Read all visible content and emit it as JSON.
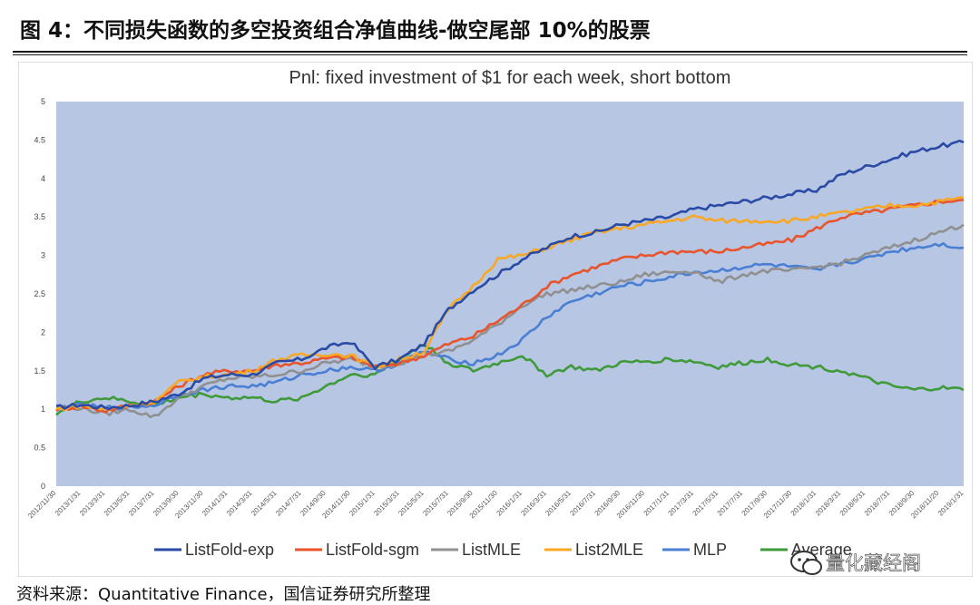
{
  "figure": {
    "title": "图 4：不同损失函数的多空投资组合净值曲线-做空尾部 10%的股票",
    "source": "资料来源：Quantitative Finance，国信证券研究所整理",
    "watermark": "量化藏经阁"
  },
  "chart_data": {
    "type": "line",
    "title": "Pnl: fixed investment of $1 for each week, short bottom",
    "xlabel": "",
    "ylabel": "",
    "ylim": [
      0,
      5
    ],
    "yticks": [
      "0",
      "0.5",
      "1",
      "1.5",
      "2",
      "2.5",
      "3",
      "3.5",
      "4",
      "4.5",
      "5"
    ],
    "grid": false,
    "legend": "bottom",
    "xticks": [
      "2012/11/30",
      "2013/1/31",
      "2013/3/31",
      "2013/5/31",
      "2013/7/31",
      "2013/9/30",
      "2013/11/30",
      "2014/1/31",
      "2014/3/31",
      "2014/5/31",
      "2014/7/31",
      "2014/9/30",
      "2014/11/30",
      "2015/1/31",
      "2015/3/31",
      "2015/5/31",
      "2015/7/31",
      "2015/9/30",
      "2015/11/30",
      "2016/1/31",
      "2016/3/31",
      "2016/5/31",
      "2016/7/31",
      "2016/9/30",
      "2016/11/30",
      "2017/1/31",
      "2017/3/31",
      "2017/5/31",
      "2017/7/31",
      "2017/9/30",
      "2017/11/30",
      "2018/1/31",
      "2018/3/31",
      "2018/5/31",
      "2018/7/31",
      "2018/9/30",
      "2018/11/20",
      "2019/1/31"
    ],
    "series": [
      {
        "name": "ListFold-exp",
        "color": "#2a4ba5",
        "values": [
          1.02,
          1.06,
          1.02,
          1.05,
          1.1,
          1.2,
          1.4,
          1.45,
          1.45,
          1.6,
          1.65,
          1.8,
          1.88,
          1.55,
          1.65,
          1.85,
          2.3,
          2.55,
          2.75,
          2.95,
          3.1,
          3.25,
          3.3,
          3.4,
          3.45,
          3.5,
          3.6,
          3.65,
          3.7,
          3.75,
          3.8,
          3.85,
          4.05,
          4.15,
          4.25,
          4.35,
          4.42,
          4.47
        ]
      },
      {
        "name": "ListFold-sgm",
        "color": "#e8542c",
        "values": [
          1.0,
          1.04,
          0.98,
          1.05,
          1.1,
          1.3,
          1.45,
          1.5,
          1.5,
          1.58,
          1.6,
          1.66,
          1.68,
          1.55,
          1.6,
          1.7,
          1.85,
          1.95,
          2.15,
          2.35,
          2.6,
          2.75,
          2.85,
          2.95,
          3.0,
          3.05,
          3.05,
          3.05,
          3.1,
          3.15,
          3.2,
          3.35,
          3.5,
          3.55,
          3.6,
          3.65,
          3.7,
          3.72
        ]
      },
      {
        "name": "ListMLE",
        "color": "#909090",
        "values": [
          1.0,
          1.02,
          0.94,
          1.0,
          0.9,
          1.15,
          1.3,
          1.4,
          1.42,
          1.45,
          1.5,
          1.6,
          1.65,
          1.55,
          1.6,
          1.7,
          1.75,
          1.9,
          2.1,
          2.35,
          2.5,
          2.55,
          2.6,
          2.65,
          2.75,
          2.78,
          2.8,
          2.65,
          2.75,
          2.8,
          2.8,
          2.85,
          2.9,
          3.0,
          3.1,
          3.2,
          3.3,
          3.4
        ]
      },
      {
        "name": "List2MLE",
        "color": "#f9a825",
        "values": [
          1.0,
          1.05,
          1.0,
          1.05,
          1.1,
          1.35,
          1.42,
          1.45,
          1.5,
          1.65,
          1.7,
          1.72,
          1.7,
          1.55,
          1.65,
          1.75,
          2.3,
          2.6,
          2.95,
          3.0,
          3.1,
          3.2,
          3.3,
          3.35,
          3.4,
          3.45,
          3.5,
          3.45,
          3.45,
          3.45,
          3.45,
          3.5,
          3.55,
          3.6,
          3.65,
          3.65,
          3.7,
          3.75
        ]
      },
      {
        "name": "MLP",
        "color": "#4a7fd4",
        "values": [
          1.02,
          1.05,
          1.02,
          1.03,
          1.05,
          1.2,
          1.25,
          1.3,
          1.3,
          1.35,
          1.45,
          1.5,
          1.55,
          1.5,
          1.6,
          1.75,
          1.65,
          1.6,
          1.7,
          1.9,
          2.2,
          2.4,
          2.5,
          2.6,
          2.65,
          2.72,
          2.78,
          2.8,
          2.85,
          2.88,
          2.85,
          2.8,
          2.9,
          2.95,
          3.05,
          3.1,
          3.15,
          3.1
        ]
      },
      {
        "name": "Average",
        "color": "#3f9a3a",
        "values": [
          0.95,
          1.1,
          1.15,
          1.1,
          1.05,
          1.15,
          1.2,
          1.15,
          1.15,
          1.1,
          1.15,
          1.3,
          1.45,
          1.45,
          1.65,
          1.85,
          1.6,
          1.5,
          1.6,
          1.7,
          1.45,
          1.55,
          1.5,
          1.6,
          1.62,
          1.65,
          1.62,
          1.55,
          1.6,
          1.65,
          1.58,
          1.55,
          1.5,
          1.4,
          1.3,
          1.25,
          1.28,
          1.25
        ]
      }
    ]
  }
}
